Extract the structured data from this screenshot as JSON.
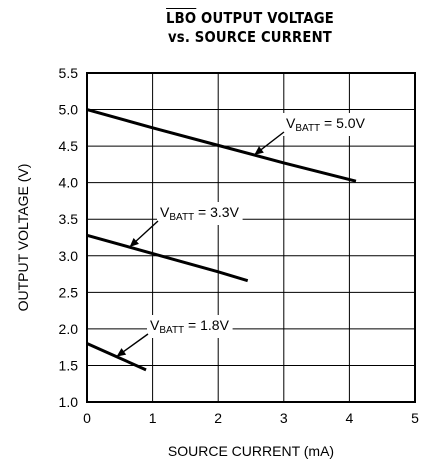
{
  "chart_data": {
    "type": "line",
    "title_line1_prefix": "LBO",
    "title_line1_suffix": " OUTPUT VOLTAGE",
    "title_line2": "vs. SOURCE CURRENT",
    "xlabel": "SOURCE CURRENT (mA)",
    "ylabel": "OUTPUT VOLTAGE (V)",
    "xlim": [
      0,
      5
    ],
    "ylim": [
      1.0,
      5.5
    ],
    "xticks": [
      "0",
      "1",
      "2",
      "3",
      "4",
      "5"
    ],
    "yticks": [
      "1.0",
      "1.5",
      "2.0",
      "2.5",
      "3.0",
      "3.5",
      "4.0",
      "4.5",
      "5.0",
      "5.5"
    ],
    "grid": true,
    "series": [
      {
        "name": "VBATT = 5.0V",
        "label_main": "V",
        "label_sub": "BATT",
        "label_rest": " = 5.0V",
        "x": [
          0,
          1,
          2,
          3,
          4.1
        ],
        "y": [
          5.0,
          4.75,
          4.51,
          4.27,
          4.02
        ]
      },
      {
        "name": "VBATT = 3.3V",
        "label_main": "V",
        "label_sub": "BATT",
        "label_rest": " = 3.3V",
        "x": [
          0,
          1,
          2,
          2.45
        ],
        "y": [
          3.28,
          3.03,
          2.78,
          2.66
        ]
      },
      {
        "name": "VBATT = 1.8V",
        "label_main": "V",
        "label_sub": "BATT",
        "label_rest": " = 1.8V",
        "x": [
          0,
          0.5,
          0.9
        ],
        "y": [
          1.8,
          1.6,
          1.44
        ]
      }
    ]
  }
}
